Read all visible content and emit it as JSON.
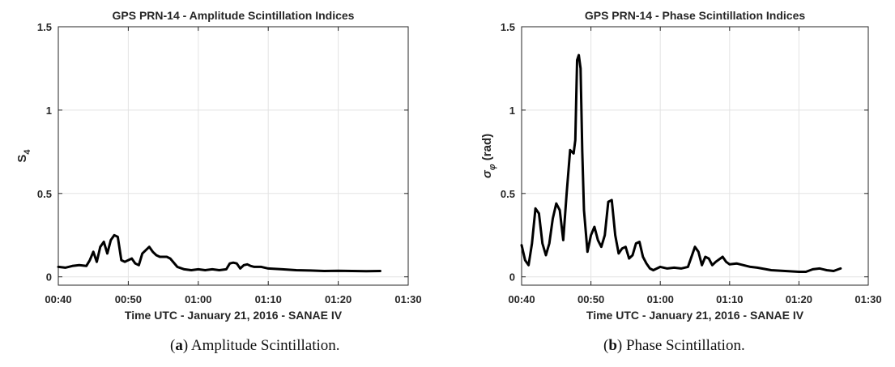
{
  "chart_data": [
    {
      "type": "line",
      "title": "GPS PRN-14 - Amplitude Scintillation Indices",
      "xlabel": "Time UTC - January 21, 2016 - SANAE IV",
      "ylabel": "S4",
      "ylabel_main": "S",
      "ylabel_sub": "4",
      "xlim": [
        "00:40",
        "01:30"
      ],
      "ylim": [
        -0.05,
        1.5
      ],
      "xticks": [
        "00:40",
        "00:50",
        "01:00",
        "01:10",
        "01:20",
        "01:30"
      ],
      "yticks": [
        "0",
        "0.5",
        "1",
        "1.5"
      ],
      "grid": true,
      "color": "#000000",
      "series": [
        {
          "x": [
            "00:40:00",
            "00:41:00",
            "00:42:00",
            "00:43:00",
            "00:44:00",
            "00:44:30",
            "00:45:00",
            "00:45:30",
            "00:46:00",
            "00:46:30",
            "00:47:00",
            "00:47:30",
            "00:48:00",
            "00:48:30",
            "00:49:00",
            "00:49:30",
            "00:50:00",
            "00:50:30",
            "00:51:00",
            "00:51:30",
            "00:52:00",
            "00:52:30",
            "00:53:00",
            "00:53:30",
            "00:54:00",
            "00:54:30",
            "00:55:00",
            "00:55:30",
            "00:56:00",
            "00:57:00",
            "00:58:00",
            "00:59:00",
            "01:00:00",
            "01:01:00",
            "01:02:00",
            "01:03:00",
            "01:04:00",
            "01:04:30",
            "01:05:00",
            "01:05:30",
            "01:06:00",
            "01:06:30",
            "01:07:00",
            "01:07:30",
            "01:08:00",
            "01:09:00",
            "01:10:00",
            "01:12:00",
            "01:14:00",
            "01:16:00",
            "01:18:00",
            "01:20:00",
            "01:22:00",
            "01:24:00",
            "01:26:00"
          ],
          "y": [
            0.06,
            0.055,
            0.065,
            0.07,
            0.065,
            0.1,
            0.15,
            0.09,
            0.18,
            0.21,
            0.14,
            0.22,
            0.25,
            0.24,
            0.1,
            0.09,
            0.1,
            0.11,
            0.08,
            0.07,
            0.14,
            0.16,
            0.18,
            0.15,
            0.13,
            0.12,
            0.12,
            0.12,
            0.11,
            0.06,
            0.045,
            0.04,
            0.045,
            0.04,
            0.045,
            0.04,
            0.045,
            0.08,
            0.085,
            0.08,
            0.05,
            0.07,
            0.075,
            0.065,
            0.06,
            0.06,
            0.05,
            0.045,
            0.04,
            0.038,
            0.035,
            0.036,
            0.035,
            0.034,
            0.035
          ]
        }
      ]
    },
    {
      "type": "line",
      "title": "GPS PRN-14 - Phase Scintillation Indices",
      "xlabel": "Time UTC - January 21, 2016 - SANAE IV",
      "ylabel": "σ φ (rad)",
      "ylabel_main": "σ",
      "ylabel_sub": "φ",
      "ylabel_unit": " (rad)",
      "xlim": [
        "00:40",
        "01:30"
      ],
      "ylim": [
        -0.05,
        1.5
      ],
      "xticks": [
        "00:40",
        "00:50",
        "01:00",
        "01:10",
        "01:20",
        "01:30"
      ],
      "yticks": [
        "0",
        "0.5",
        "1",
        "1.5"
      ],
      "grid": true,
      "color": "#000000",
      "series": [
        {
          "x": [
            "00:40:00",
            "00:40:30",
            "00:41:00",
            "00:41:30",
            "00:42:00",
            "00:42:30",
            "00:43:00",
            "00:43:30",
            "00:44:00",
            "00:44:30",
            "00:45:00",
            "00:45:30",
            "00:46:00",
            "00:46:30",
            "00:47:00",
            "00:47:30",
            "00:47:45",
            "00:48:00",
            "00:48:15",
            "00:48:30",
            "00:48:45",
            "00:49:00",
            "00:49:30",
            "00:50:00",
            "00:50:30",
            "00:51:00",
            "00:51:30",
            "00:52:00",
            "00:52:30",
            "00:53:00",
            "00:53:30",
            "00:54:00",
            "00:54:30",
            "00:55:00",
            "00:55:30",
            "00:56:00",
            "00:56:30",
            "00:57:00",
            "00:57:30",
            "00:58:00",
            "00:58:30",
            "00:59:00",
            "01:00:00",
            "01:01:00",
            "01:02:00",
            "01:03:00",
            "01:04:00",
            "01:05:00",
            "01:05:30",
            "01:06:00",
            "01:06:30",
            "01:07:00",
            "01:07:30",
            "01:08:00",
            "01:09:00",
            "01:09:30",
            "01:10:00",
            "01:11:00",
            "01:12:00",
            "01:13:00",
            "01:14:00",
            "01:16:00",
            "01:18:00",
            "01:20:00",
            "01:21:00",
            "01:22:00",
            "01:23:00",
            "01:24:00",
            "01:25:00",
            "01:26:00"
          ],
          "y": [
            0.19,
            0.1,
            0.07,
            0.2,
            0.41,
            0.38,
            0.2,
            0.13,
            0.2,
            0.35,
            0.44,
            0.4,
            0.22,
            0.5,
            0.76,
            0.74,
            0.82,
            1.3,
            1.33,
            1.25,
            0.75,
            0.4,
            0.15,
            0.25,
            0.3,
            0.22,
            0.18,
            0.25,
            0.45,
            0.46,
            0.25,
            0.14,
            0.17,
            0.18,
            0.11,
            0.13,
            0.2,
            0.21,
            0.12,
            0.08,
            0.05,
            0.04,
            0.06,
            0.05,
            0.055,
            0.05,
            0.06,
            0.18,
            0.15,
            0.07,
            0.12,
            0.11,
            0.07,
            0.09,
            0.12,
            0.09,
            0.075,
            0.08,
            0.07,
            0.06,
            0.055,
            0.04,
            0.035,
            0.03,
            0.03,
            0.045,
            0.05,
            0.04,
            0.035,
            0.05
          ]
        }
      ]
    }
  ],
  "captions": [
    {
      "label": "a",
      "text": ") Amplitude Scintillation."
    },
    {
      "label": "b",
      "text": ") Phase Scintillation."
    }
  ]
}
